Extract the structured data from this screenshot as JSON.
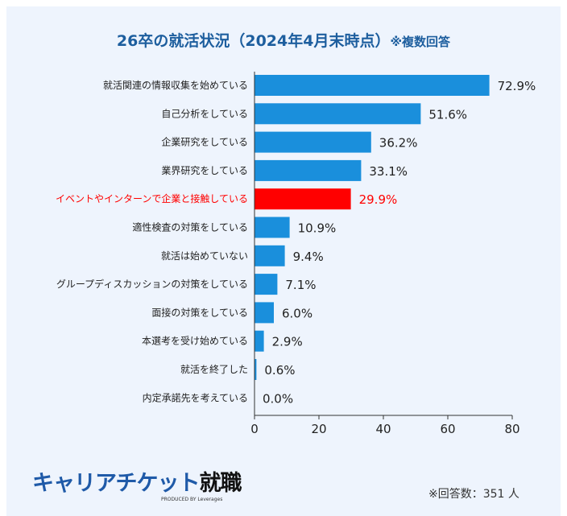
{
  "chart_data": {
    "type": "bar",
    "orientation": "horizontal",
    "title": "26卒の就活状況（2024年4月末時点）",
    "title_note": "※複数回答",
    "categories": [
      "就活関連の情報収集を始めている",
      "自己分析をしている",
      "企業研究をしている",
      "業界研究をしている",
      "イベントやインターンで企業と接触している",
      "適性検査の対策をしている",
      "就活は始めていない",
      "グループディスカッションの対策をしている",
      "面接の対策をしている",
      "本選考を受け始めている",
      "就活を終了した",
      "内定承諾先を考えている"
    ],
    "values": [
      72.9,
      51.6,
      36.2,
      33.1,
      29.9,
      10.9,
      9.4,
      7.1,
      6.0,
      2.9,
      0.6,
      0.0
    ],
    "data_labels": [
      "72.9%",
      "51.6%",
      "36.2%",
      "33.1%",
      "29.9%",
      "10.9%",
      "9.4%",
      "7.1%",
      "6.0%",
      "2.9%",
      "0.6%",
      "0.0%"
    ],
    "highlight_index": 4,
    "xlim": [
      0,
      80
    ],
    "x_ticks": [
      "0",
      "20",
      "40",
      "60",
      "80"
    ],
    "grid": false,
    "colors": {
      "bar": "#1a8fdc",
      "highlight": "#ff0000",
      "title": "#1d5e9e"
    }
  },
  "footer": {
    "logo_main": "キャリアチケット",
    "logo_kanji": "就職",
    "logo_sub": "PRODUCED BY Leverages",
    "respondents": "※回答数：351 人"
  }
}
